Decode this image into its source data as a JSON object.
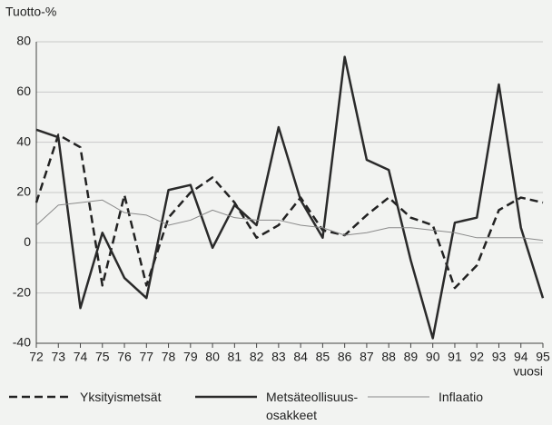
{
  "chart_data": {
    "type": "line",
    "title": "Tuotto-%",
    "x_label": "vuosi",
    "x": [
      72,
      73,
      74,
      75,
      76,
      77,
      78,
      79,
      80,
      81,
      82,
      83,
      84,
      85,
      86,
      87,
      88,
      89,
      90,
      91,
      92,
      93,
      94,
      95
    ],
    "xlim": [
      72,
      95
    ],
    "xticks": [
      72,
      73,
      74,
      75,
      76,
      77,
      78,
      79,
      80,
      81,
      82,
      83,
      84,
      85,
      86,
      87,
      88,
      89,
      90,
      91,
      92,
      93,
      94,
      95
    ],
    "ylim": [
      -40,
      80
    ],
    "yticks": [
      -40,
      -20,
      0,
      20,
      40,
      60,
      80
    ],
    "grid": true,
    "legend": "bottom",
    "series": [
      {
        "name": "Yksityismetsät",
        "color": "#222222",
        "linestyle": "dashed",
        "linewidth": 2.5,
        "values": [
          16,
          43,
          38,
          -17,
          19,
          -17,
          10,
          20,
          26,
          16,
          2,
          7,
          18,
          5,
          3,
          11,
          18,
          10,
          7,
          -18,
          -9,
          13,
          18,
          16
        ]
      },
      {
        "name": "Metsäteollisuus-\nosakkeet",
        "color": "#2a2a2a",
        "linestyle": "solid",
        "linewidth": 2.5,
        "values": [
          45,
          42,
          -26,
          4,
          -14,
          -22,
          21,
          23,
          -2,
          15,
          7,
          46,
          17,
          2,
          74,
          33,
          29,
          -7,
          -38,
          8,
          10,
          63,
          6,
          -22
        ]
      },
      {
        "name": "Inflaatio",
        "color": "#8a8a8a",
        "linestyle": "solid",
        "linewidth": 1,
        "values": [
          7,
          15,
          16,
          17,
          12,
          11,
          7,
          9,
          13,
          10,
          9,
          9,
          7,
          6,
          3,
          4,
          6,
          6,
          5,
          4,
          2,
          2,
          2,
          1
        ]
      }
    ]
  }
}
